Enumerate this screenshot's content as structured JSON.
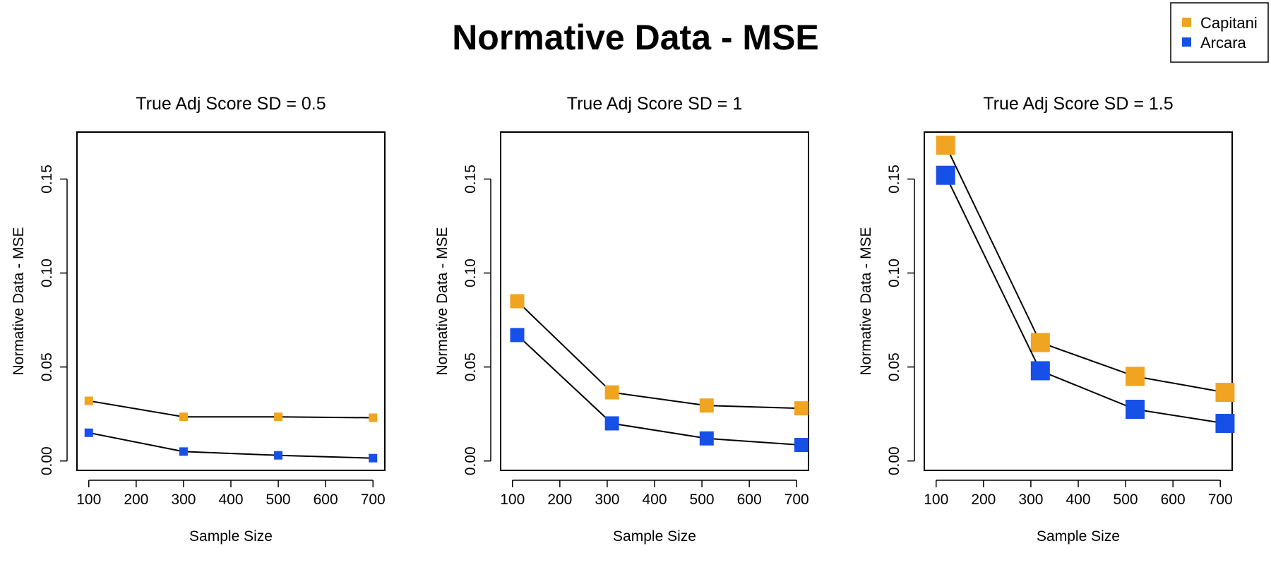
{
  "figure": {
    "title": "Normative Data - MSE"
  },
  "legend": {
    "position": "top-right",
    "items": [
      {
        "label": "Capitani",
        "color": "#F0A422"
      },
      {
        "label": "Arcara",
        "color": "#1750E6"
      }
    ]
  },
  "chart_data": [
    {
      "type": "line",
      "title": "True Adj Score SD = 0.5",
      "xlabel": "Sample Size",
      "ylabel": "Normative Data - MSE",
      "xlim": [
        75,
        725
      ],
      "ylim": [
        -0.005,
        0.175
      ],
      "x_ticks": [
        100,
        200,
        300,
        400,
        500,
        600,
        700
      ],
      "y_ticks": [
        "0.00",
        "0.05",
        "0.10",
        "0.15"
      ],
      "grid": false,
      "marker": "square",
      "marker_scale": "small",
      "series": [
        {
          "name": "Capitani",
          "color": "#F0A422",
          "x": [
            100,
            300,
            500,
            700
          ],
          "y": [
            0.032,
            0.0235,
            0.0235,
            0.023
          ]
        },
        {
          "name": "Arcara",
          "color": "#1750E6",
          "x": [
            100,
            300,
            500,
            700
          ],
          "y": [
            0.015,
            0.005,
            0.003,
            0.0015
          ]
        }
      ]
    },
    {
      "type": "line",
      "title": "True Adj Score SD = 1",
      "xlabel": "Sample Size",
      "ylabel": "Normative Data - MSE",
      "xlim": [
        75,
        725
      ],
      "ylim": [
        -0.005,
        0.175
      ],
      "x_ticks": [
        100,
        200,
        300,
        400,
        500,
        600,
        700
      ],
      "y_ticks": [
        "0.00",
        "0.05",
        "0.10",
        "0.15"
      ],
      "grid": false,
      "marker": "square",
      "marker_scale": "medium",
      "series": [
        {
          "name": "Capitani",
          "color": "#F0A422",
          "x": [
            110,
            310,
            510,
            710
          ],
          "y": [
            0.085,
            0.0365,
            0.0295,
            0.028
          ]
        },
        {
          "name": "Arcara",
          "color": "#1750E6",
          "x": [
            110,
            310,
            510,
            710
          ],
          "y": [
            0.067,
            0.02,
            0.012,
            0.0085
          ]
        }
      ]
    },
    {
      "type": "line",
      "title": "True Adj Score SD = 1.5",
      "xlabel": "Sample Size",
      "ylabel": "Normative Data - MSE",
      "xlim": [
        75,
        725
      ],
      "ylim": [
        -0.005,
        0.175
      ],
      "x_ticks": [
        100,
        200,
        300,
        400,
        500,
        600,
        700
      ],
      "y_ticks": [
        "0.00",
        "0.05",
        "0.10",
        "0.15"
      ],
      "grid": false,
      "marker": "square",
      "marker_scale": "large",
      "series": [
        {
          "name": "Capitani",
          "color": "#F0A422",
          "x": [
            120,
            320,
            520,
            710
          ],
          "y": [
            0.168,
            0.063,
            0.045,
            0.0365
          ]
        },
        {
          "name": "Arcara",
          "color": "#1750E6",
          "x": [
            120,
            320,
            520,
            710
          ],
          "y": [
            0.152,
            0.048,
            0.0275,
            0.02
          ]
        }
      ]
    }
  ]
}
